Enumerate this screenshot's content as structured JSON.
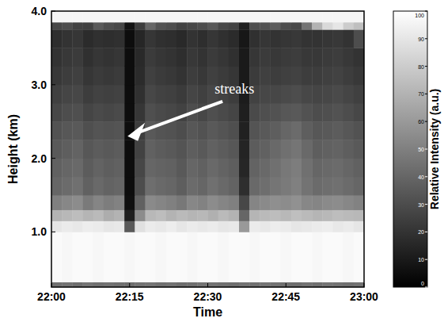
{
  "chart_data": {
    "type": "heatmap",
    "x_label": "Time",
    "y_label": "Height (km)",
    "xlim": [
      1320,
      1380
    ],
    "xticks": [
      {
        "value": 1320,
        "label": "22:00"
      },
      {
        "value": 1335,
        "label": "22:15"
      },
      {
        "value": 1350,
        "label": "22:30"
      },
      {
        "value": 1365,
        "label": "22:45"
      },
      {
        "value": 1380,
        "label": "23:00"
      }
    ],
    "ylim": [
      0.25,
      4.0
    ],
    "yticks": [
      {
        "value": 1,
        "label": "1.0"
      },
      {
        "value": 2,
        "label": "2.0"
      },
      {
        "value": 3,
        "label": "3.0"
      },
      {
        "value": 4,
        "label": "4.0"
      }
    ],
    "x_bins": [
      1320,
      1322,
      1324,
      1326,
      1328,
      1330,
      1332,
      1334,
      1336,
      1338,
      1340,
      1342,
      1344,
      1346,
      1348,
      1350,
      1352,
      1354,
      1356,
      1358,
      1360,
      1362,
      1364,
      1366,
      1368,
      1370,
      1372,
      1374,
      1376,
      1378,
      1380
    ],
    "y_bins": [
      0.25,
      0.32,
      1.0,
      1.15,
      1.3,
      1.5,
      1.75,
      2.0,
      2.25,
      2.5,
      2.75,
      3.0,
      3.25,
      3.5,
      3.75,
      3.85,
      4.0
    ],
    "values": [
      [
        44,
        45,
        43,
        46,
        44,
        45,
        44,
        43,
        45,
        46,
        44,
        45,
        43,
        44,
        46,
        45,
        44,
        43,
        45,
        44,
        46,
        45,
        44,
        43,
        45,
        44,
        46,
        45,
        44,
        45
      ],
      [
        98,
        97,
        98,
        98,
        97,
        98,
        98,
        97,
        98,
        98,
        97,
        98,
        98,
        97,
        98,
        98,
        97,
        98,
        98,
        97,
        98,
        98,
        97,
        98,
        98,
        97,
        98,
        98,
        97,
        98
      ],
      [
        90,
        92,
        91,
        93,
        92,
        90,
        91,
        35,
        88,
        92,
        91,
        93,
        90,
        92,
        91,
        92,
        90,
        91,
        60,
        92,
        91,
        93,
        92,
        90,
        91,
        92,
        93,
        91,
        92,
        90
      ],
      [
        70,
        72,
        74,
        71,
        73,
        68,
        70,
        12,
        55,
        72,
        74,
        70,
        73,
        71,
        72,
        69,
        73,
        70,
        40,
        71,
        73,
        74,
        72,
        75,
        73,
        71,
        72,
        74,
        73,
        72
      ],
      [
        50,
        53,
        55,
        48,
        52,
        49,
        51,
        6,
        38,
        54,
        52,
        50,
        47,
        53,
        51,
        55,
        52,
        50,
        28,
        52,
        54,
        56,
        55,
        57,
        53,
        52,
        54,
        55,
        53,
        51
      ],
      [
        40,
        42,
        44,
        38,
        41,
        39,
        40,
        5,
        30,
        43,
        41,
        40,
        37,
        42,
        40,
        44,
        41,
        39,
        18,
        41,
        43,
        46,
        48,
        50,
        45,
        42,
        43,
        44,
        42,
        40
      ],
      [
        38,
        40,
        41,
        36,
        39,
        37,
        38,
        5,
        28,
        40,
        39,
        38,
        35,
        40,
        38,
        41,
        39,
        37,
        15,
        39,
        41,
        44,
        47,
        49,
        44,
        40,
        41,
        42,
        40,
        38
      ],
      [
        35,
        37,
        39,
        34,
        36,
        35,
        36,
        5,
        26,
        38,
        36,
        35,
        33,
        37,
        35,
        38,
        36,
        34,
        14,
        36,
        38,
        41,
        44,
        46,
        41,
        37,
        38,
        39,
        37,
        35
      ],
      [
        32,
        34,
        35,
        31,
        33,
        32,
        33,
        5,
        24,
        35,
        33,
        32,
        30,
        34,
        32,
        35,
        33,
        31,
        13,
        33,
        35,
        37,
        40,
        42,
        37,
        34,
        35,
        36,
        34,
        32
      ],
      [
        28,
        30,
        31,
        27,
        29,
        28,
        29,
        5,
        21,
        31,
        29,
        28,
        26,
        30,
        28,
        31,
        29,
        27,
        12,
        29,
        31,
        32,
        34,
        35,
        32,
        30,
        31,
        32,
        30,
        28
      ],
      [
        25,
        27,
        28,
        24,
        26,
        25,
        26,
        5,
        19,
        28,
        26,
        25,
        23,
        27,
        25,
        28,
        26,
        24,
        11,
        26,
        28,
        28,
        29,
        30,
        28,
        27,
        28,
        29,
        27,
        25
      ],
      [
        22,
        24,
        25,
        21,
        23,
        22,
        23,
        5,
        17,
        25,
        23,
        22,
        20,
        24,
        22,
        25,
        23,
        21,
        10,
        23,
        25,
        24,
        25,
        26,
        24,
        24,
        25,
        26,
        24,
        22
      ],
      [
        20,
        22,
        23,
        19,
        21,
        20,
        21,
        5,
        16,
        23,
        21,
        20,
        18,
        22,
        20,
        23,
        21,
        19,
        10,
        21,
        23,
        22,
        23,
        24,
        22,
        22,
        23,
        24,
        22,
        20
      ],
      [
        18,
        20,
        21,
        17,
        19,
        18,
        19,
        5,
        15,
        21,
        19,
        18,
        16,
        20,
        18,
        21,
        19,
        17,
        9,
        19,
        21,
        20,
        21,
        22,
        20,
        20,
        21,
        22,
        20,
        30
      ],
      [
        28,
        30,
        26,
        25,
        35,
        30,
        28,
        8,
        24,
        40,
        32,
        30,
        26,
        28,
        30,
        34,
        28,
        26,
        12,
        30,
        32,
        36,
        30,
        28,
        45,
        70,
        85,
        90,
        80,
        75
      ],
      [
        96,
        96,
        96,
        96,
        96,
        96,
        96,
        96,
        96,
        96,
        96,
        96,
        96,
        96,
        96,
        96,
        96,
        96,
        96,
        96,
        96,
        96,
        96,
        96,
        96,
        96,
        96,
        96,
        96,
        96
      ]
    ],
    "colorbar": {
      "label": "Relative Intensity (a.u.)",
      "range": [
        0,
        100
      ],
      "ticks": [
        0,
        10,
        20,
        30,
        40,
        50,
        60,
        70,
        80,
        90,
        100
      ]
    },
    "annotation": {
      "text": "streaks",
      "x": 1334,
      "y": 2.3
    }
  }
}
